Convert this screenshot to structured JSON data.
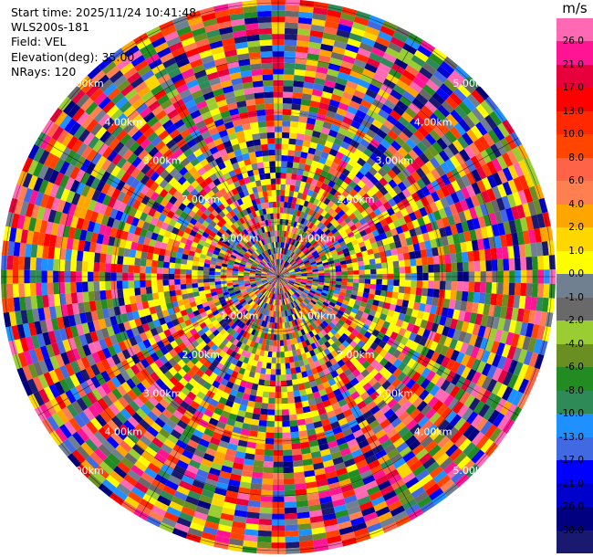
{
  "info": {
    "start_time": "Start time: 2025/11/24 10:41:48",
    "site": "WLS200s-181",
    "field": "Field: VEL",
    "elevation": "Elevation(deg): 35.00",
    "nrays": "NRays: 120"
  },
  "colorbar": {
    "unit": "m/s",
    "ticks": [
      "26.0",
      "21.0",
      "17.0",
      "13.0",
      "10.0",
      "8.0",
      "6.0",
      "4.0",
      "2.0",
      "1.0",
      "0.0",
      "-1.0",
      "-2.0",
      "-4.0",
      "-6.0",
      "-8.0",
      "-10.0",
      "-13.0",
      "-17.0",
      "-21.0",
      "-26.0",
      "-30.0"
    ],
    "colors": [
      "#ff69b4",
      "#ff1493",
      "#e8003c",
      "#ff0000",
      "#ff2800",
      "#ff4500",
      "#ff6347",
      "#ff7f50",
      "#ffa500",
      "#ffd700",
      "#ffff00",
      "#708090",
      "#696969",
      "#9acd32",
      "#6b8e23",
      "#228b22",
      "#2e8b57",
      "#1e90ff",
      "#4169e1",
      "#0000ff",
      "#0000cd",
      "#000080",
      "#191970"
    ]
  },
  "chart_data": {
    "type": "heatmap",
    "subtype": "radar PPI",
    "field": "VEL",
    "unit": "m/s",
    "nrays": 120,
    "elevation_deg": 35.0,
    "range_ring_labels": [
      "1.00km",
      "2.00km",
      "3.00km",
      "4.00km",
      "5.00km"
    ],
    "vmin": -30.0,
    "vmax": 26.0,
    "grid": true
  }
}
